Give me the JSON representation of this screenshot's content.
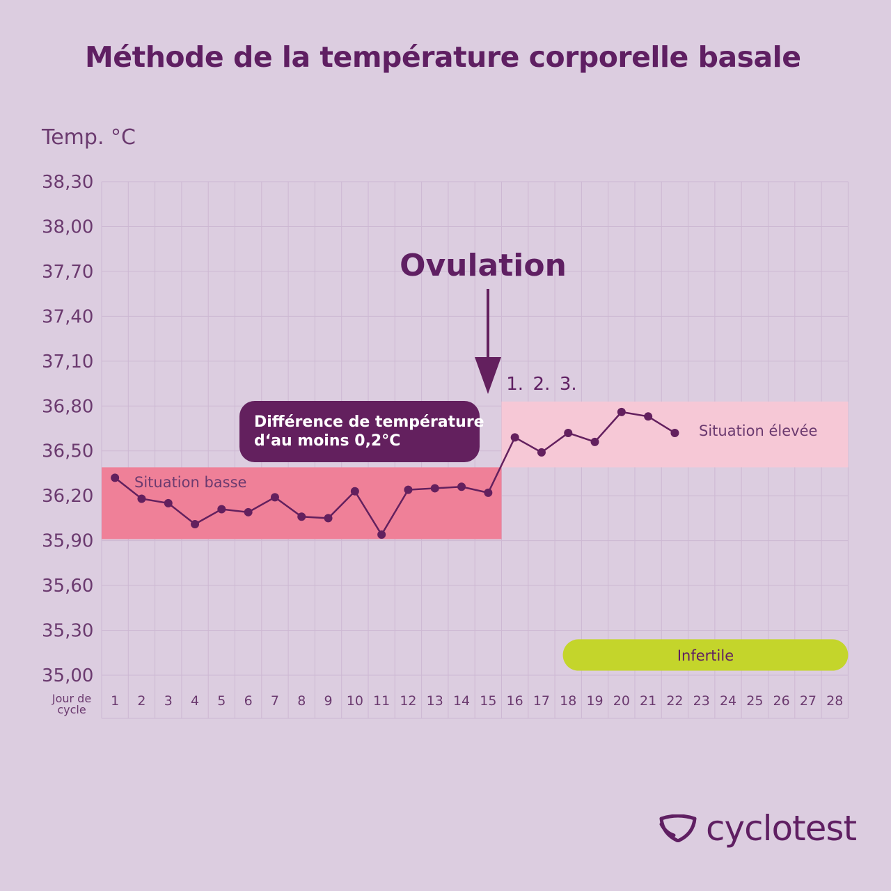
{
  "title": "Méthode de la température corporelle basale",
  "brand": {
    "name": "cyclotest",
    "icon": "cyclotest-logo-icon"
  },
  "colors": {
    "background": "#dccde0",
    "primary": "#5f1f62",
    "low_band": "#ef8098",
    "high_band": "#f6c8d6",
    "infertile": "#c4d52b",
    "callout": "#63205e"
  },
  "chart_data": {
    "type": "line",
    "ylabel": "Temp. °C",
    "xlabel": "Jour de cycle",
    "ylim": [
      35.0,
      38.3
    ],
    "xlim": [
      1,
      28
    ],
    "y_ticks": [
      "38,30",
      "38,00",
      "37,70",
      "37,40",
      "37,10",
      "36,80",
      "36,50",
      "36,20",
      "35,90",
      "35,60",
      "35,30",
      "35,00"
    ],
    "y_tick_values": [
      38.3,
      38.0,
      37.7,
      37.4,
      37.1,
      36.8,
      36.5,
      36.2,
      35.9,
      35.6,
      35.3,
      35.0
    ],
    "x_ticks": [
      "1",
      "2",
      "3",
      "4",
      "5",
      "6",
      "7",
      "8",
      "9",
      "10",
      "11",
      "12",
      "13",
      "14",
      "15",
      "16",
      "17",
      "18",
      "19",
      "20",
      "21",
      "22",
      "23",
      "24",
      "25",
      "26",
      "27",
      "28"
    ],
    "grid": true,
    "series": [
      {
        "x": [
          1,
          2,
          3,
          4,
          5,
          6,
          7,
          8,
          9,
          10,
          11,
          12,
          13,
          14,
          15,
          16,
          17,
          18,
          19,
          20,
          21,
          22
        ],
        "values": [
          36.32,
          36.18,
          36.15,
          36.01,
          36.11,
          36.09,
          36.19,
          36.06,
          36.05,
          36.23,
          35.94,
          36.24,
          36.25,
          36.26,
          36.22,
          36.59,
          36.49,
          36.62,
          36.56,
          36.76,
          36.73,
          36.62
        ]
      }
    ],
    "bands": [
      {
        "label": "Situation basse",
        "x_range": [
          0.5,
          15.5
        ],
        "y_range": [
          35.91,
          36.39
        ]
      },
      {
        "label": "Situation élevée",
        "x_range": [
          15.5,
          28.5
        ],
        "y_range": [
          36.39,
          36.83
        ]
      }
    ],
    "infertile": {
      "label": "Infertile",
      "x_range": [
        17.8,
        28.5
      ],
      "y_range": [
        35.03,
        35.24
      ]
    },
    "annotations": {
      "ovulation": {
        "label": "Ovulation",
        "x": 15
      },
      "day_counts": [
        "1.",
        "2.",
        "3."
      ],
      "callout": [
        "Différence de température",
        "d‘au moins 0,2°C"
      ]
    }
  }
}
